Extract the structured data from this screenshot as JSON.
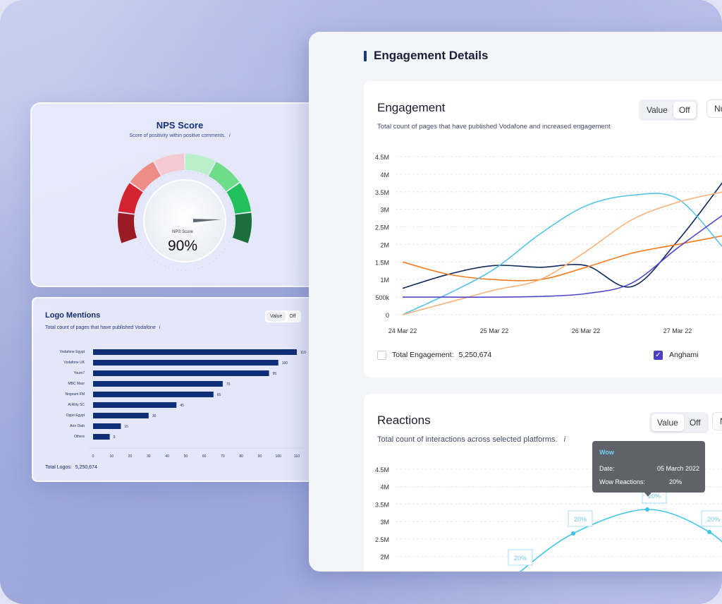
{
  "nps": {
    "title": "NPS Score",
    "subtitle": "Score of positivity within positive comments.",
    "info_icon": "i",
    "gauge_label": "NPS Score",
    "gauge_value": "90%",
    "gauge_fraction": 0.9,
    "segment_colors": [
      "#9b1b24",
      "#d42331",
      "#ee8d86",
      "#f4c9cf",
      "#b8f0cc",
      "#6fdc8a",
      "#22c05a",
      "#1a6f3a"
    ]
  },
  "logo_mentions": {
    "title": "Logo Mentions",
    "subtitle": "Total count of pages that have published Vodafone",
    "info_icon": "i",
    "toggle": {
      "value": "Value",
      "off": "Off"
    },
    "total_label": "Total Logos:",
    "total_value": "5,250,674",
    "chart_data": {
      "type": "bar",
      "orientation": "horizontal",
      "categories": [
        "Vodafone Egypt",
        "Vodafone UK",
        "Youm7",
        "MBC Masr",
        "Nogoum FM",
        "Al Ahly SC",
        "Oppo Egypt",
        "Amr Diab",
        "Others"
      ],
      "values": [
        110,
        100,
        95,
        70,
        65,
        45,
        30,
        15,
        9
      ],
      "value_labels": [
        "110",
        "100",
        "95",
        "70",
        "65",
        "45",
        "30",
        "15",
        "9"
      ],
      "xlim": [
        0,
        110
      ],
      "x_ticks": [
        "0",
        "10",
        "20",
        "30",
        "40",
        "50",
        "60",
        "70",
        "80",
        "90",
        "100",
        "110"
      ],
      "color": "#0e2f78"
    }
  },
  "engagement_details": {
    "header": "Engagement Details",
    "accent": "#1c3a7a"
  },
  "engagement": {
    "title": "Engagement",
    "subtitle": "Total count of pages that have published Vodafone and increased engagement",
    "toggle": {
      "value": "Value",
      "off": "Off"
    },
    "extra_toggle": "Nu",
    "total_label": "Total Engagement:",
    "total_value": "5,250,674",
    "legend_item": "Anghami",
    "legend_color": "#4b3fc6",
    "chart_data": {
      "type": "line",
      "y_ticks": [
        "0",
        "500k",
        "1M",
        "1.5M",
        "2M",
        "2.5M",
        "3M",
        "3.5M",
        "4M",
        "4.5M"
      ],
      "ylim": [
        0,
        4500000
      ],
      "x_ticks": [
        "24 Mar 22",
        "25 Mar 22",
        "26 Mar 22",
        "27 Mar 22"
      ],
      "x": [
        24,
        24.5,
        25,
        25.5,
        26,
        26.5,
        27,
        27.5
      ],
      "series": [
        {
          "color": "#0e2a5c",
          "values": [
            750000,
            1150000,
            1400000,
            1350000,
            1400000,
            800000,
            2100000,
            3800000
          ]
        },
        {
          "color": "#f47d20",
          "values": [
            1500000,
            1150000,
            1000000,
            1000000,
            1350000,
            1750000,
            2000000,
            2250000
          ]
        },
        {
          "color": "#56c3e6",
          "values": [
            0,
            600000,
            1300000,
            2300000,
            3100000,
            3400000,
            3300000,
            1900000
          ]
        },
        {
          "color": "#f8b27a",
          "values": [
            0,
            350000,
            700000,
            1000000,
            1800000,
            2700000,
            3200000,
            3500000
          ]
        },
        {
          "color": "#5246c8",
          "values": [
            500000,
            500000,
            500000,
            520000,
            600000,
            900000,
            1900000,
            2850000
          ]
        }
      ]
    }
  },
  "reactions": {
    "title": "Reactions",
    "subtitle": "Total count of interactions across selected platforms.",
    "info_icon": "i",
    "toggle": {
      "value": "Value",
      "off": "Off"
    },
    "extra_toggle": "N",
    "tooltip": {
      "title": "Wow",
      "date_label": "Date:",
      "date_value": "05 March 2022",
      "metric_label": "Wow Reactions:",
      "metric_value": "20%"
    },
    "chart_data": {
      "type": "line",
      "y_ticks": [
        "2M",
        "2.5M",
        "3M",
        "3.5M",
        "4M",
        "4.5M"
      ],
      "point_labels": [
        "20%",
        "20%",
        "20%",
        "20%"
      ],
      "color": "#3fc4e8"
    }
  }
}
